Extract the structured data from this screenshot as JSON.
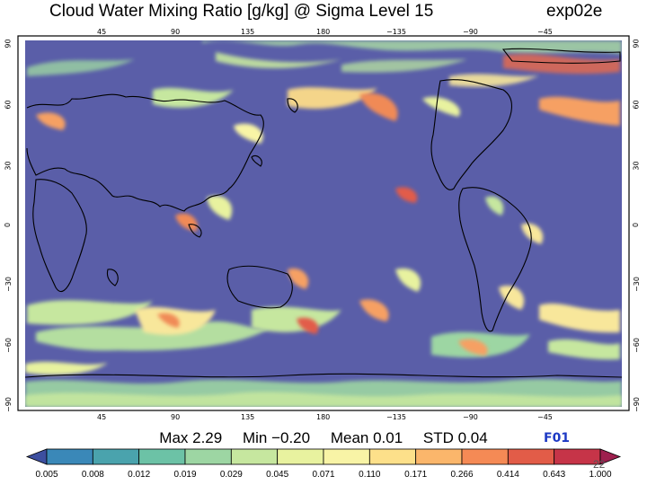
{
  "header": {
    "title": "Cloud Water Mixing Ratio [g/kg]  @ Sigma Level 15",
    "experiment": "exp02e"
  },
  "map": {
    "projection": "cylindrical equidistant",
    "ocean_color": "#5a5ea8",
    "lon_ticks": [
      "45",
      "90",
      "135",
      "180",
      "−135",
      "−90",
      "−45"
    ],
    "lat_ticks_left": [
      "90",
      "60",
      "30",
      "0",
      "−30",
      "−60",
      "−90"
    ],
    "lat_ticks_right": [
      "90",
      "60",
      "30",
      "0",
      "−30",
      "−60",
      "−90"
    ]
  },
  "stats": {
    "max": "Max 2.29",
    "min": "Min −0.20",
    "mean": "Mean 0.01",
    "std": "STD 0.04"
  },
  "panel_label": "F01",
  "slide_number": "22",
  "colorbar": {
    "labels": [
      "0.005",
      "0.008",
      "0.012",
      "0.019",
      "0.029",
      "0.045",
      "0.071",
      "0.110",
      "0.171",
      "0.266",
      "0.414",
      "0.643",
      "1.000"
    ],
    "colors": [
      "#3d4fa0",
      "#3a88b8",
      "#4aa3ad",
      "#6cc2a6",
      "#9dd6a3",
      "#c6e79f",
      "#e8f29f",
      "#f8f4a6",
      "#fde08a",
      "#fbb66b",
      "#f58a55",
      "#e25c48",
      "#c63448",
      "#9e1f4e"
    ]
  }
}
